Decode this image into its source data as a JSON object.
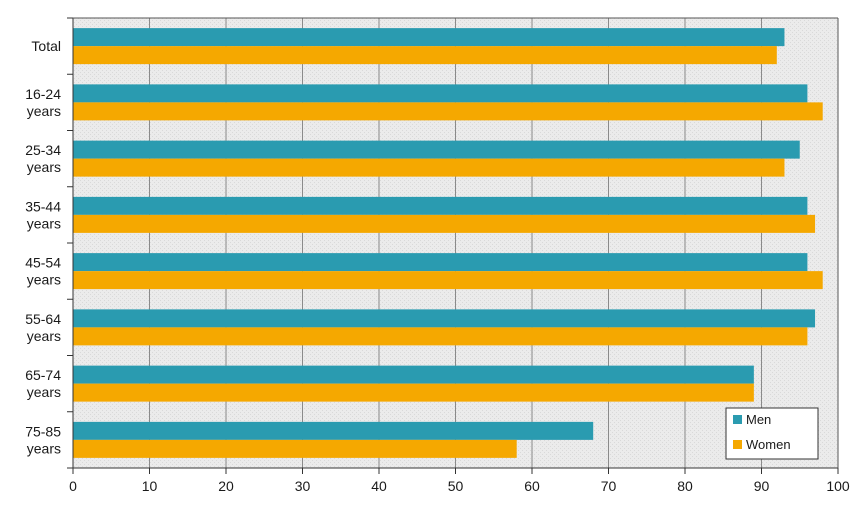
{
  "chart_data": {
    "type": "bar",
    "orientation": "horizontal",
    "title": "",
    "xlabel": "",
    "ylabel": "",
    "categories": [
      [
        "Total"
      ],
      [
        "16-24",
        "years"
      ],
      [
        "25-34",
        "years"
      ],
      [
        "35-44",
        "years"
      ],
      [
        "45-54",
        "years"
      ],
      [
        "55-64",
        "years"
      ],
      [
        "65-74",
        "years"
      ],
      [
        "75-85",
        "years"
      ]
    ],
    "series": [
      {
        "name": "Men",
        "color": "#2a9bb0",
        "values": [
          93,
          96,
          95,
          96,
          96,
          97,
          89,
          68
        ]
      },
      {
        "name": "Women",
        "color": "#f5a800",
        "values": [
          92,
          98,
          93,
          97,
          98,
          96,
          89,
          58
        ]
      }
    ],
    "xlim": [
      0,
      100
    ],
    "xticks": [
      0,
      10,
      20,
      30,
      40,
      50,
      60,
      70,
      80,
      90,
      100
    ],
    "grid": true,
    "legend_position": "bottom-right",
    "plot_background": "#ebebeb"
  }
}
